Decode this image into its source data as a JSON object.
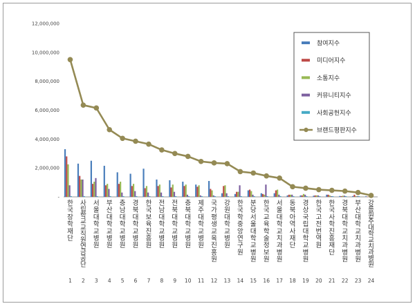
{
  "chart_data": {
    "type": "bar",
    "title": "",
    "xlabel": "",
    "ylabel": "",
    "ylim": [
      0,
      12000000
    ],
    "yticks": [
      "12,000,000",
      "10,000,000",
      "8,000,000",
      "6,000,000",
      "4,000,000",
      "2,000,000",
      "-"
    ],
    "grid": false,
    "legend_position": "top-right",
    "indices": [
      "1",
      "2",
      "3",
      "4",
      "5",
      "6",
      "7",
      "8",
      "9",
      "10",
      "11",
      "12",
      "13",
      "14",
      "15",
      "16",
      "17",
      "18",
      "19",
      "20",
      "21",
      "22",
      "23",
      "24"
    ],
    "categories": [
      "한국장학재단",
      "사립학교교직원연금공단",
      "서울대학교병원",
      "부산대학교병원",
      "충남대학교병원",
      "경북대학교병원",
      "한국보육진흥원",
      "전남대학교병원",
      "전북대학교병원",
      "충북대학교병원",
      "제주대학교병원",
      "국가평생교육진흥원",
      "강원대학교병원",
      "한국학중앙연구원",
      "분당서울대학교병원",
      "한국교육학술정보원",
      "서울대학교치과병원",
      "동북아역사재단",
      "경상국립대학교병원",
      "한국고전번역원",
      "한국사학진흥재단",
      "경북대학교치과병원",
      "부산대학교치과병원",
      "강릉원주대학교치과병원"
    ],
    "series": [
      {
        "name": "참여지수",
        "color": "#4a7ebb",
        "kind": "bar",
        "values": [
          3300000,
          2300000,
          2500000,
          2150000,
          1700000,
          1600000,
          1950000,
          1200000,
          1150000,
          1050000,
          850000,
          1100000,
          250000,
          200000,
          450000,
          250000,
          250000,
          100000,
          100000,
          80000,
          150000,
          60000,
          60000,
          40000
        ]
      },
      {
        "name": "미디어지수",
        "color": "#be4b48",
        "kind": "bar",
        "values": [
          2800000,
          1450000,
          900000,
          800000,
          900000,
          750000,
          600000,
          750000,
          650000,
          750000,
          700000,
          550000,
          750000,
          350000,
          500000,
          200000,
          450000,
          150000,
          100000,
          100000,
          150000,
          50000,
          150000,
          20000
        ]
      },
      {
        "name": "소통지수",
        "color": "#98b954",
        "kind": "bar",
        "values": [
          2250000,
          1200000,
          1050000,
          900000,
          1050000,
          900000,
          750000,
          850000,
          850000,
          850000,
          800000,
          450000,
          800000,
          350000,
          400000,
          150000,
          500000,
          150000,
          200000,
          100000,
          100000,
          80000,
          50000,
          30000
        ]
      },
      {
        "name": "커뮤니티지수",
        "color": "#7d60a0",
        "kind": "bar",
        "values": [
          800000,
          1200000,
          1300000,
          550000,
          300000,
          400000,
          300000,
          300000,
          350000,
          150000,
          100000,
          100000,
          250000,
          800000,
          150000,
          850000,
          150000,
          150000,
          150000,
          100000,
          50000,
          80000,
          50000,
          30000
        ]
      },
      {
        "name": "사회공헌지수",
        "color": "#46aac5",
        "kind": "bar",
        "values": [
          50000,
          50000,
          50000,
          50000,
          50000,
          50000,
          50000,
          50000,
          50000,
          50000,
          50000,
          50000,
          50000,
          50000,
          50000,
          50000,
          50000,
          50000,
          50000,
          50000,
          50000,
          50000,
          50000,
          50000
        ]
      },
      {
        "name": "브랜드평판지수",
        "color": "#948a54",
        "kind": "line",
        "values": [
          9500000,
          6350000,
          6150000,
          4650000,
          4050000,
          3850000,
          3650000,
          3250000,
          3000000,
          2800000,
          2450000,
          2350000,
          2300000,
          1750000,
          1650000,
          1450000,
          1300000,
          700000,
          600000,
          500000,
          450000,
          400000,
          300000,
          100000
        ]
      }
    ]
  }
}
